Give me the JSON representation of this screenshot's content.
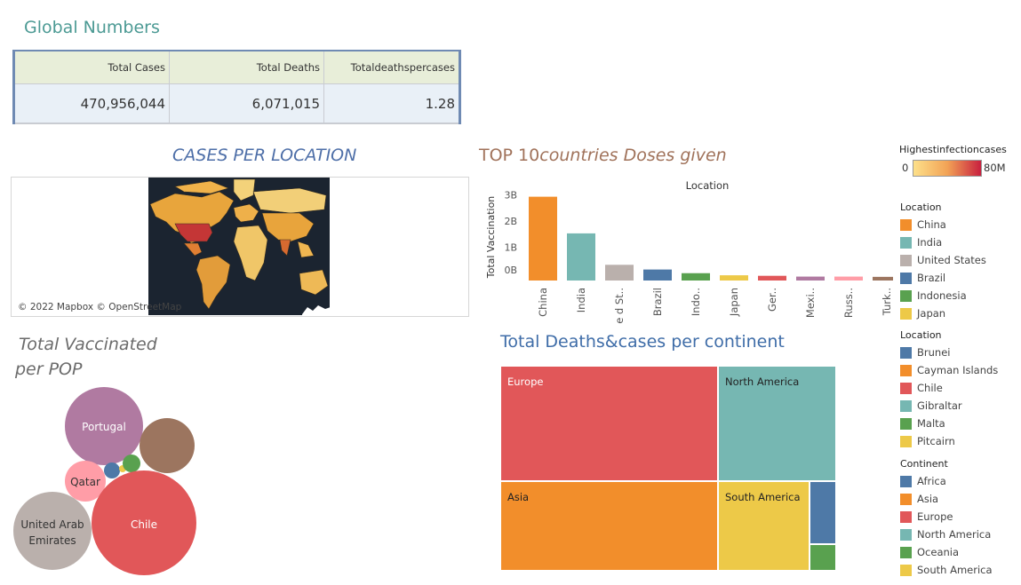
{
  "global": {
    "title": "Global Numbers",
    "headers": [
      "Total Cases",
      "Total Deaths",
      "Totaldeathspercases"
    ],
    "values": [
      "470,956,044",
      "6,071,015",
      "1.28"
    ]
  },
  "cases_map": {
    "title": "CASES PER LOCATION",
    "credit": "© 2022 Mapbox © OpenStreetMap"
  },
  "top10": {
    "title_prefix": "TOP 10",
    "title_rest": "countries Doses given",
    "column_header": "Location",
    "ylabel": "Total Vaccination"
  },
  "vacc": {
    "title_line1": "Total Vaccinated",
    "title_line2": "per POP"
  },
  "deaths": {
    "title": "Total Deaths&cases per continent"
  },
  "legend_heat": {
    "title": "Highestinfectioncases",
    "min": "0",
    "max": "80M",
    "color_low": "#fde08a",
    "color_high": "#c8203f"
  },
  "legend_location1": {
    "title": "Location",
    "items": [
      {
        "label": "China",
        "color": "#f28e2b"
      },
      {
        "label": "India",
        "color": "#76b7b2"
      },
      {
        "label": "United States",
        "color": "#bab0ac"
      },
      {
        "label": "Brazil",
        "color": "#4e79a7"
      },
      {
        "label": "Indonesia",
        "color": "#59a14f"
      },
      {
        "label": "Japan",
        "color": "#edc948"
      }
    ]
  },
  "legend_location2": {
    "title": "Location",
    "items": [
      {
        "label": "Brunei",
        "color": "#4e79a7"
      },
      {
        "label": "Cayman Islands",
        "color": "#f28e2b"
      },
      {
        "label": "Chile",
        "color": "#e15759"
      },
      {
        "label": "Gibraltar",
        "color": "#76b7b2"
      },
      {
        "label": "Malta",
        "color": "#59a14f"
      },
      {
        "label": "Pitcairn",
        "color": "#edc948"
      }
    ]
  },
  "legend_continent": {
    "title": "Continent",
    "items": [
      {
        "label": "Africa",
        "color": "#4e79a7"
      },
      {
        "label": "Asia",
        "color": "#f28e2b"
      },
      {
        "label": "Europe",
        "color": "#e15759"
      },
      {
        "label": "North America",
        "color": "#76b7b2"
      },
      {
        "label": "Oceania",
        "color": "#59a14f"
      },
      {
        "label": "South America",
        "color": "#edc948"
      }
    ]
  },
  "chart_data": [
    {
      "type": "bar",
      "title": "TOP 10countries Doses given",
      "xlabel": "Location",
      "ylabel": "Total Vaccination",
      "categories": [
        "China",
        "India",
        "Unite d St..",
        "Brazil",
        "Indo..",
        "Japan",
        "Ger..",
        "Mexi..",
        "Russ..",
        "Turk.."
      ],
      "values": [
        3.2,
        1.8,
        0.6,
        0.42,
        0.28,
        0.2,
        0.18,
        0.15,
        0.15,
        0.14
      ],
      "colors": [
        "#f28e2b",
        "#76b7b2",
        "#bab0ac",
        "#4e79a7",
        "#59a14f",
        "#edc948",
        "#e15759",
        "#b07aa1",
        "#ff9da7",
        "#9c755f"
      ],
      "yticks": [
        "0B",
        "1B",
        "2B",
        "3B"
      ],
      "ylim": [
        0,
        3.4
      ]
    },
    {
      "type": "scatter",
      "title": "Total Vaccinated per POP",
      "bubbles": [
        {
          "label": "Portugal",
          "color": "#b07aa1"
        },
        {
          "label": "",
          "color": "#9c755f"
        },
        {
          "label": "Qatar",
          "color": "#ff9da7"
        },
        {
          "label": "",
          "color": "#4e79a7"
        },
        {
          "label": "",
          "color": "#59a14f"
        },
        {
          "label": "Chile",
          "color": "#e15759"
        },
        {
          "label": "United Arab Emirates",
          "color": "#bab0ac"
        }
      ]
    },
    {
      "type": "heatmap",
      "title": "Total Deaths&cases per continent",
      "cells": [
        {
          "label": "Europe",
          "color": "#e15759"
        },
        {
          "label": "North America",
          "color": "#76b7b2"
        },
        {
          "label": "Asia",
          "color": "#f28e2b"
        },
        {
          "label": "South America",
          "color": "#edc948"
        },
        {
          "label": "",
          "color": "#4e79a7"
        },
        {
          "label": "",
          "color": "#59a14f"
        }
      ]
    }
  ]
}
